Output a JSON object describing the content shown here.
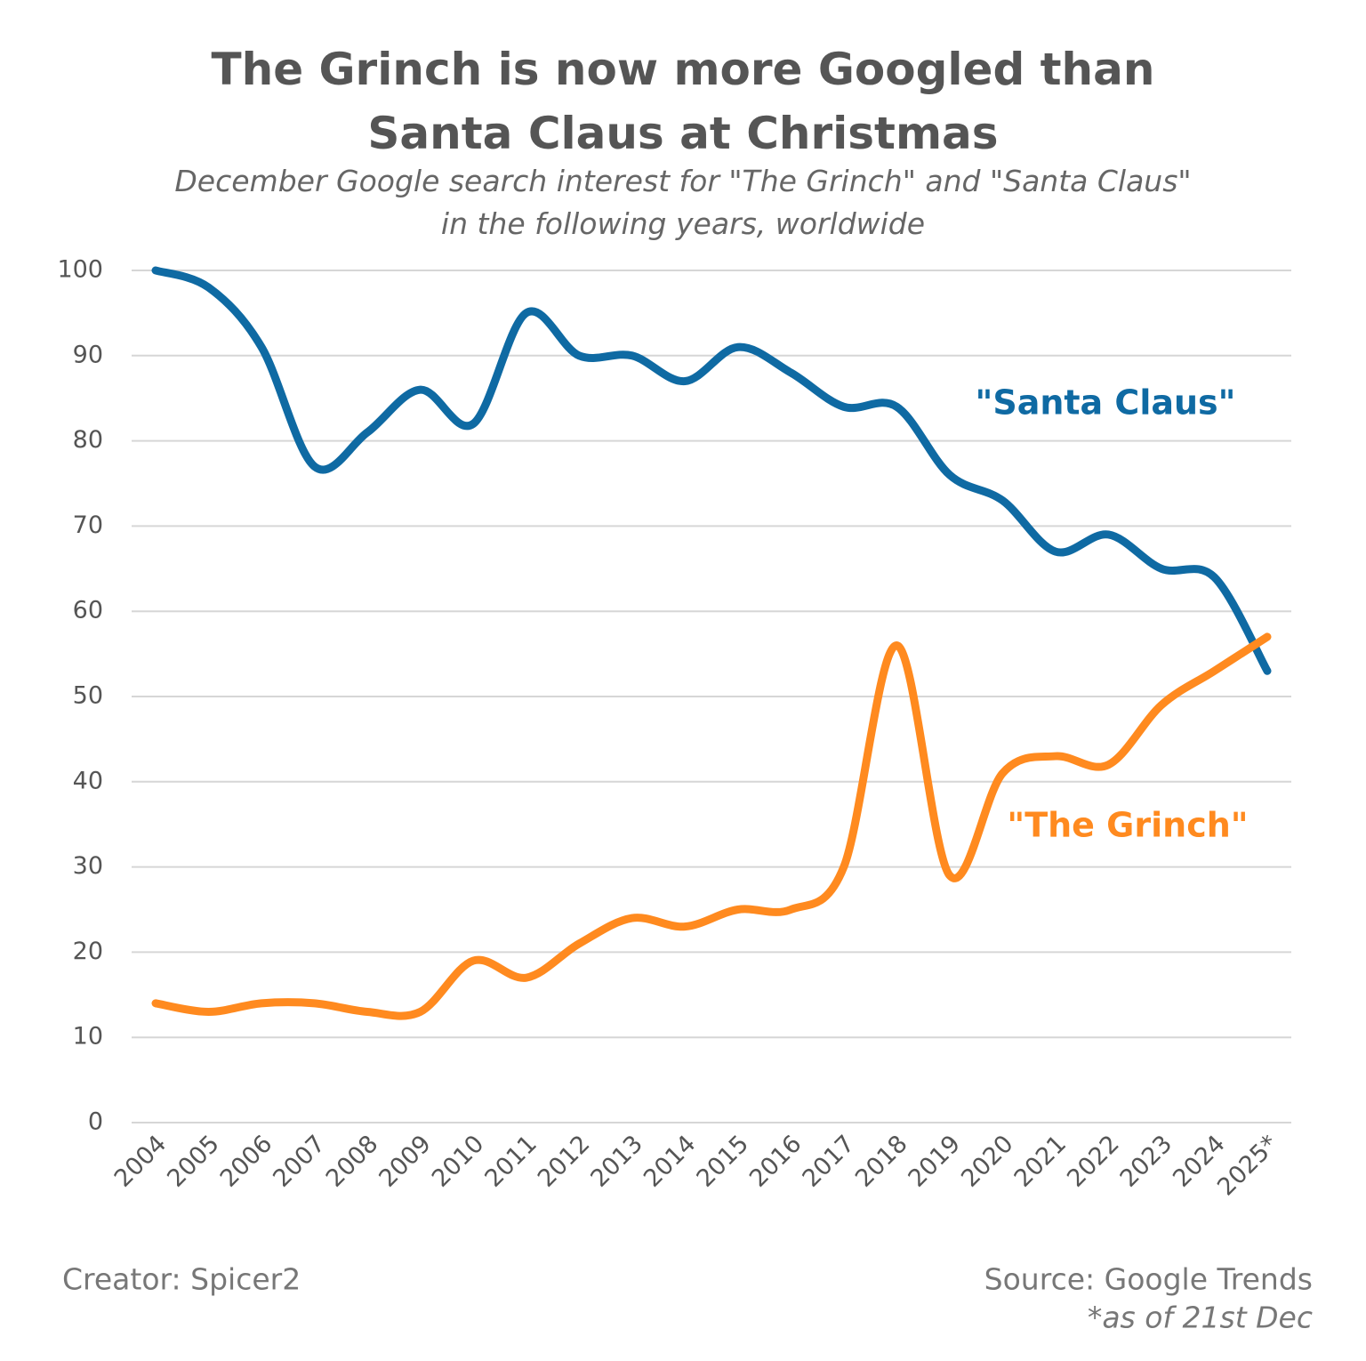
{
  "chart_data": {
    "type": "line",
    "title": "The Grinch is now more Googled than Santa Claus at Christmas",
    "subtitle": "December Google search interest for \"The Grinch\" and \"Santa Claus\" in the following years, worldwide",
    "categories": [
      "2004",
      "2005",
      "2006",
      "2007",
      "2008",
      "2009",
      "2010",
      "2011",
      "2012",
      "2013",
      "2014",
      "2015",
      "2016",
      "2017",
      "2018",
      "2019",
      "2020",
      "2021",
      "2022",
      "2023",
      "2024",
      "2025*"
    ],
    "series": [
      {
        "name": "\"Santa Claus\"",
        "color": "#0f6aa3",
        "values": [
          100,
          98,
          91,
          77,
          81,
          86,
          82,
          95,
          90,
          90,
          87,
          91,
          88,
          84,
          84,
          76,
          73,
          67,
          69,
          65,
          64,
          53
        ]
      },
      {
        "name": "\"The Grinch\"",
        "color": "#ff8a1f",
        "values": [
          14,
          13,
          14,
          14,
          13,
          13,
          19,
          17,
          21,
          24,
          23,
          25,
          25,
          30,
          56,
          29,
          41,
          43,
          42,
          49,
          53,
          57
        ]
      }
    ],
    "ylim": [
      0,
      100
    ],
    "yticks": [
      0,
      10,
      20,
      30,
      40,
      50,
      60,
      70,
      80,
      90,
      100
    ],
    "grid": true,
    "creator": "Creator: Spicer2",
    "source": "Source: Google Trends",
    "note": "*as of 21st Dec"
  }
}
